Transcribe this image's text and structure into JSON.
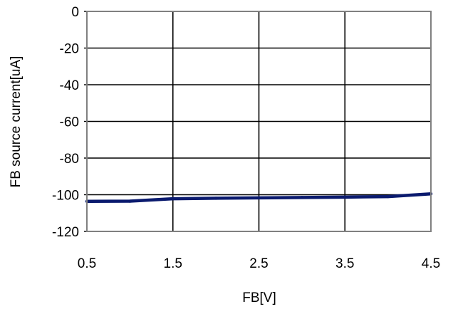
{
  "chart_data": {
    "type": "line",
    "title": "",
    "xlabel": "FB[V]",
    "ylabel": "FB source current[uA]",
    "xlim": [
      0.5,
      4.5
    ],
    "ylim": [
      -120,
      0
    ],
    "x_ticks": [
      "0.5",
      "1.5",
      "2.5",
      "3.5",
      "4.5"
    ],
    "y_ticks": [
      "0",
      "-20",
      "-40",
      "-60",
      "-80",
      "-100",
      "-120"
    ],
    "grid": true,
    "legend": "none",
    "series": [
      {
        "color": "#0a1a6e",
        "x": [
          0.5,
          1.0,
          1.5,
          2.0,
          2.5,
          3.0,
          3.5,
          4.0,
          4.5
        ],
        "y": [
          -103.6,
          -103.5,
          -102.2,
          -101.9,
          -101.7,
          -101.5,
          -101.3,
          -101.0,
          -99.5
        ]
      }
    ]
  }
}
